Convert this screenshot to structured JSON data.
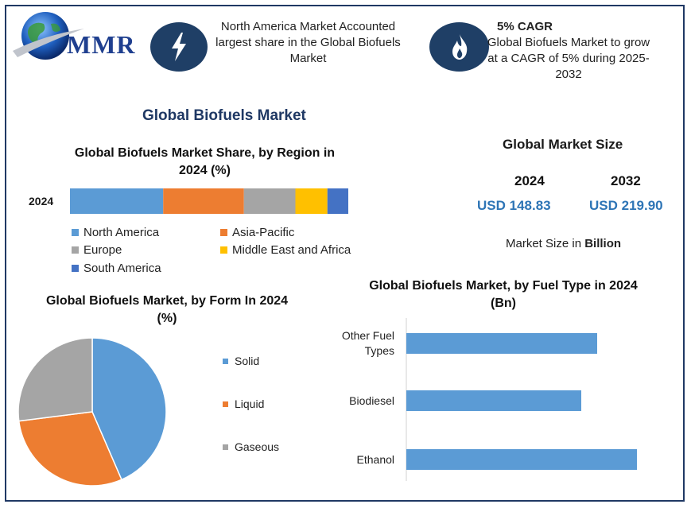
{
  "brand": {
    "logo_text": "MMR"
  },
  "info": {
    "box1": "North America Market Accounted largest share in the Global Biofuels Market",
    "box2_title": "5% CAGR",
    "box2_text": "Global Biofuels Market to grow at a CAGR of 5% during 2025-2032"
  },
  "main_title": "Global Biofuels Market",
  "market_size": {
    "title": "Global Market Size",
    "year1": "2024",
    "year2": "2032",
    "value1": "USD 148.83",
    "value2": "USD 219.90",
    "note_prefix": "Market Size in ",
    "note_bold": "Billion"
  },
  "colors": {
    "north_america": "#5b9bd5",
    "asia_pacific": "#ed7d31",
    "europe": "#a5a5a5",
    "middle_east_africa": "#ffc000",
    "south_america": "#4472c4",
    "solid": "#5b9bd5",
    "liquid": "#ed7d31",
    "gaseous": "#a5a5a5",
    "fuel_bar": "#5b9bd5"
  },
  "chart_data": [
    {
      "type": "bar",
      "orientation": "horizontal-stacked",
      "title": "Global Biofuels Market Share, by Region in 2024 (%)",
      "categories": [
        "2024"
      ],
      "series": [
        {
          "name": "North America",
          "values": [
            33.5
          ]
        },
        {
          "name": "Asia-Pacific",
          "values": [
            29
          ]
        },
        {
          "name": "Europe",
          "values": [
            18.5
          ]
        },
        {
          "name": "Middle East and Africa",
          "values": [
            11.5
          ]
        },
        {
          "name": "South America",
          "values": [
            7.5
          ]
        }
      ],
      "legend": "bottom"
    },
    {
      "type": "pie",
      "title": "Global Biofuels Market, by Form  In 2024 (%)",
      "labels": [
        "Solid",
        "Liquid",
        "Gaseous"
      ],
      "values": [
        43.5,
        29.5,
        27
      ],
      "legend": "right"
    },
    {
      "type": "bar",
      "orientation": "horizontal",
      "title": "Global Biofuels Market, by Fuel Type  in 2024 (Bn)",
      "categories": [
        "Other Fuel Types",
        "Biodiesel",
        "Ethanol"
      ],
      "values": [
        48,
        44,
        58
      ],
      "xlim": [
        0,
        60
      ]
    }
  ]
}
